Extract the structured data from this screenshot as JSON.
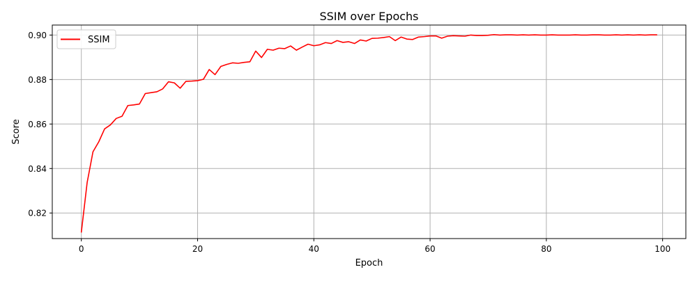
{
  "chart_data": {
    "type": "line",
    "title": "SSIM over Epochs",
    "xlabel": "Epoch",
    "ylabel": "Score",
    "xlim": [
      -5,
      104
    ],
    "ylim": [
      0.8085,
      0.9045
    ],
    "xticks": [
      0,
      20,
      40,
      60,
      80,
      100
    ],
    "xtick_labels": [
      "0",
      "20",
      "40",
      "60",
      "80",
      "100"
    ],
    "yticks": [
      0.82,
      0.84,
      0.86,
      0.88,
      0.9
    ],
    "ytick_labels": [
      "0.82",
      "0.84",
      "0.86",
      "0.88",
      "0.90"
    ],
    "grid": true,
    "legend_position": "top-left",
    "series": [
      {
        "name": "SSIM",
        "color": "#ff0000",
        "x": [
          0,
          1,
          2,
          3,
          4,
          5,
          6,
          7,
          8,
          9,
          10,
          11,
          12,
          13,
          14,
          15,
          16,
          17,
          18,
          19,
          20,
          21,
          22,
          23,
          24,
          25,
          26,
          27,
          28,
          29,
          30,
          31,
          32,
          33,
          34,
          35,
          36,
          37,
          38,
          39,
          40,
          41,
          42,
          43,
          44,
          45,
          46,
          47,
          48,
          49,
          50,
          51,
          52,
          53,
          54,
          55,
          56,
          57,
          58,
          59,
          60,
          61,
          62,
          63,
          64,
          65,
          66,
          67,
          68,
          69,
          70,
          71,
          72,
          73,
          74,
          75,
          76,
          77,
          78,
          79,
          80,
          81,
          82,
          83,
          84,
          85,
          86,
          87,
          88,
          89,
          90,
          91,
          92,
          93,
          94,
          95,
          96,
          97,
          98,
          99
        ],
        "values": [
          0.8114,
          0.8337,
          0.8475,
          0.852,
          0.8578,
          0.8596,
          0.8625,
          0.8635,
          0.8683,
          0.8686,
          0.869,
          0.8737,
          0.8741,
          0.8745,
          0.8758,
          0.879,
          0.8785,
          0.8761,
          0.8792,
          0.8793,
          0.8795,
          0.8801,
          0.8845,
          0.8822,
          0.8859,
          0.8868,
          0.8875,
          0.8873,
          0.8877,
          0.888,
          0.8928,
          0.8899,
          0.8936,
          0.8932,
          0.8941,
          0.8939,
          0.8951,
          0.8932,
          0.8946,
          0.8959,
          0.8952,
          0.8956,
          0.8966,
          0.8962,
          0.8975,
          0.8967,
          0.897,
          0.8962,
          0.8978,
          0.8973,
          0.8985,
          0.8986,
          0.8989,
          0.8993,
          0.8975,
          0.8991,
          0.8982,
          0.898,
          0.8991,
          0.8993,
          0.8996,
          0.8996,
          0.8986,
          0.8995,
          0.8997,
          0.8996,
          0.8995,
          0.9,
          0.8998,
          0.8998,
          0.8999,
          0.9002,
          0.9,
          0.9001,
          0.9001,
          0.9,
          0.9001,
          0.9,
          0.9001,
          0.9,
          0.9,
          0.9001,
          0.9,
          0.9,
          0.9,
          0.9001,
          0.9,
          0.9,
          0.9001,
          0.9001,
          0.9,
          0.9,
          0.9001,
          0.9,
          0.9001,
          0.9,
          0.9001,
          0.9,
          0.9001,
          0.9001
        ]
      }
    ]
  }
}
